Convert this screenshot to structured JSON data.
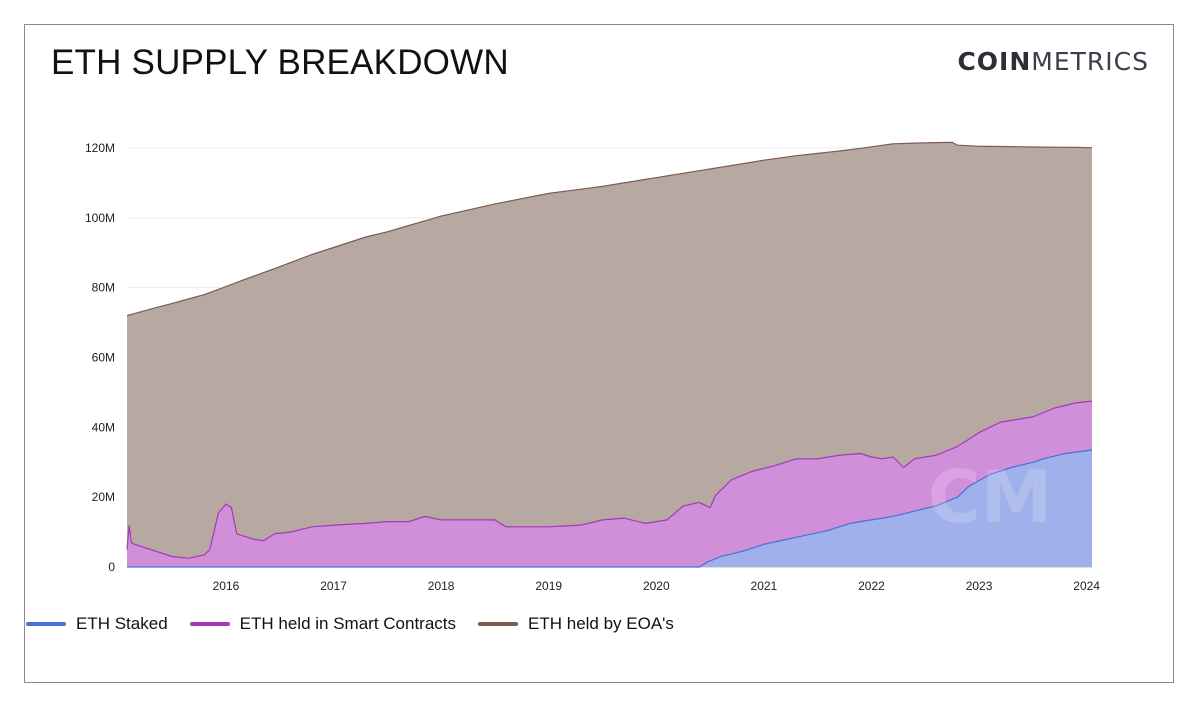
{
  "header": {
    "title": "ETH SUPPLY BREAKDOWN",
    "logo_bold": "COIN",
    "logo_light": "METRICS"
  },
  "watermark": "CM",
  "colors": {
    "staked_fill": "#9fb0ea",
    "staked_line": "#4a6fd6",
    "contracts_fill": "#d08fd9",
    "contracts_line": "#a23ab5",
    "eoa_fill": "#b8a8a2",
    "eoa_line": "#7a5c50"
  },
  "chart_data": {
    "type": "area",
    "stacked": true,
    "title": "ETH SUPPLY BREAKDOWN",
    "xlabel": "",
    "ylabel": "",
    "ylim": [
      0,
      120000000
    ],
    "y_ticks": [
      "0",
      "20M",
      "40M",
      "60M",
      "80M",
      "100M",
      "120M"
    ],
    "x_ticks": [
      "2016",
      "2017",
      "2018",
      "2019",
      "2020",
      "2021",
      "2022",
      "2023",
      "2024"
    ],
    "xlim": [
      2015.58,
      2024.55
    ],
    "grid": true,
    "legend_position": "bottom-left",
    "series": [
      {
        "name": "ETH Staked",
        "x": [
          2015.58,
          2020.9,
          2020.98,
          2021.1,
          2021.3,
          2021.5,
          2021.8,
          2022.1,
          2022.3,
          2022.5,
          2022.7,
          2022.9,
          2023.1,
          2023.3,
          2023.4,
          2023.6,
          2023.8,
          2024.0,
          2024.1,
          2024.3,
          2024.55
        ],
        "values": [
          0,
          0,
          1.5,
          3.0,
          4.5,
          6.5,
          8.5,
          10.5,
          12.5,
          13.5,
          14.5,
          16.0,
          17.5,
          20.0,
          23.0,
          26.5,
          28.5,
          30.0,
          31.0,
          32.5,
          33.5
        ]
      },
      {
        "name": "ETH held in Smart Contracts",
        "x": [
          2015.58,
          2015.6,
          2015.62,
          2015.65,
          2015.7,
          2015.85,
          2016.0,
          2016.15,
          2016.3,
          2016.35,
          2016.43,
          2016.5,
          2016.55,
          2016.6,
          2016.75,
          2016.85,
          2016.95,
          2017.1,
          2017.3,
          2017.5,
          2017.8,
          2018.0,
          2018.2,
          2018.35,
          2018.5,
          2018.8,
          2019.0,
          2019.1,
          2019.5,
          2019.8,
          2020.0,
          2020.2,
          2020.4,
          2020.6,
          2020.75,
          2020.9,
          2021.0,
          2021.05,
          2021.2,
          2021.4,
          2021.6,
          2021.8,
          2022.0,
          2022.2,
          2022.4,
          2022.5,
          2022.6,
          2022.7,
          2022.8,
          2022.9,
          2023.1,
          2023.3,
          2023.5,
          2023.7,
          2023.9,
          2024.0,
          2024.2,
          2024.4,
          2024.55
        ],
        "values": [
          5.0,
          12.0,
          7.0,
          6.5,
          6.0,
          4.5,
          3.0,
          2.5,
          3.5,
          5.0,
          15.5,
          18.0,
          17.0,
          9.5,
          8.0,
          7.5,
          9.5,
          10.0,
          11.5,
          12.0,
          12.5,
          13.0,
          13.0,
          14.5,
          13.5,
          13.5,
          13.5,
          11.5,
          11.5,
          12.0,
          13.5,
          14.0,
          12.5,
          13.5,
          17.5,
          18.5,
          17.0,
          20.5,
          25.0,
          27.5,
          29.0,
          31.0,
          31.0,
          32.0,
          32.5,
          31.5,
          31.0,
          31.5,
          28.5,
          31.0,
          32.0,
          34.5,
          38.5,
          41.5,
          42.5,
          43.0,
          45.5,
          47.0,
          47.5
        ]
      },
      {
        "name": "ETH held by EOA's",
        "x": [
          2015.58,
          2016.0,
          2016.3,
          2016.6,
          2017.0,
          2017.3,
          2017.6,
          2017.8,
          2018.0,
          2018.5,
          2019.0,
          2019.5,
          2020.0,
          2020.5,
          2021.0,
          2021.5,
          2021.8,
          2022.1,
          2022.3,
          2022.7,
          2023.0,
          2023.25,
          2023.3,
          2023.5,
          2023.8,
          2024.0,
          2024.3,
          2024.55
        ],
        "values": [
          72.0,
          75.5,
          78.0,
          81.5,
          86.0,
          89.5,
          92.5,
          94.5,
          96.0,
          100.5,
          104.0,
          107.0,
          109.0,
          111.5,
          114.0,
          116.5,
          117.8,
          118.8,
          119.5,
          121.2,
          121.5,
          121.6,
          120.8,
          120.5,
          120.4,
          120.3,
          120.2,
          120.1
        ]
      }
    ]
  },
  "legend": {
    "items": [
      {
        "label": "ETH Staked",
        "color": "#4a6fd6"
      },
      {
        "label": "ETH held in Smart Contracts",
        "color": "#a23ab5"
      },
      {
        "label": "ETH held by EOA's",
        "color": "#7a5c50"
      }
    ]
  }
}
